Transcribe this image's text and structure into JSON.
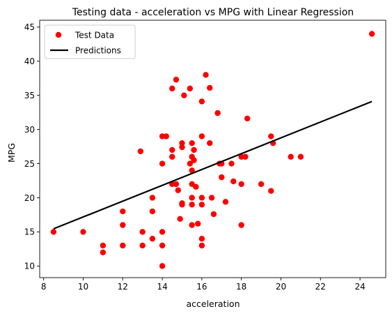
{
  "chart_data": {
    "type": "scatter",
    "title": "Testing data - acceleration vs MPG with Linear Regression",
    "xlabel": "acceleration",
    "ylabel": "MPG",
    "xlim": [
      7.8,
      25.3
    ],
    "ylim": [
      8.3,
      46.0
    ],
    "xticks": [
      8,
      10,
      12,
      14,
      16,
      18,
      20,
      22,
      24
    ],
    "yticks": [
      10,
      15,
      20,
      25,
      30,
      35,
      40,
      45
    ],
    "grid": false,
    "legend_position": "top-left",
    "series": [
      {
        "name": "Test Data",
        "kind": "scatter",
        "color": "#ff0000",
        "points": [
          [
            8.5,
            15
          ],
          [
            10,
            15
          ],
          [
            11,
            13
          ],
          [
            11,
            12
          ],
          [
            12,
            18
          ],
          [
            12,
            16
          ],
          [
            12,
            13
          ],
          [
            12.9,
            26.8
          ],
          [
            13,
            15
          ],
          [
            13,
            13
          ],
          [
            13.5,
            20
          ],
          [
            13.5,
            18
          ],
          [
            13.5,
            14
          ],
          [
            14,
            29
          ],
          [
            14.2,
            29
          ],
          [
            14,
            25
          ],
          [
            14,
            15
          ],
          [
            14,
            13
          ],
          [
            14,
            10
          ],
          [
            14.5,
            36
          ],
          [
            14.7,
            37.3
          ],
          [
            14.5,
            27
          ],
          [
            14.5,
            26
          ],
          [
            14.5,
            22
          ],
          [
            14.7,
            22
          ],
          [
            14.8,
            21.1
          ],
          [
            14.9,
            16.9
          ],
          [
            15,
            28
          ],
          [
            15,
            27.4
          ],
          [
            15.1,
            35
          ],
          [
            15,
            19.2
          ],
          [
            15,
            19
          ],
          [
            15.4,
            36
          ],
          [
            15.4,
            25
          ],
          [
            15.5,
            28
          ],
          [
            15.5,
            26
          ],
          [
            15.5,
            24
          ],
          [
            15.5,
            22
          ],
          [
            15.5,
            20
          ],
          [
            15.5,
            19
          ],
          [
            15.5,
            16
          ],
          [
            15.6,
            27
          ],
          [
            15.6,
            25.5
          ],
          [
            15.7,
            21.6
          ],
          [
            15.8,
            16.2
          ],
          [
            16,
            34.1
          ],
          [
            16,
            29
          ],
          [
            16,
            20
          ],
          [
            16,
            19
          ],
          [
            16,
            14
          ],
          [
            16,
            13
          ],
          [
            16.2,
            38
          ],
          [
            16.4,
            36.1
          ],
          [
            16.4,
            28
          ],
          [
            16.5,
            20
          ],
          [
            16.6,
            17.6
          ],
          [
            16.8,
            32.4
          ],
          [
            16.9,
            25
          ],
          [
            17,
            25
          ],
          [
            17,
            23
          ],
          [
            17.2,
            19.4
          ],
          [
            17.5,
            25
          ],
          [
            17.6,
            22.4
          ],
          [
            18,
            26
          ],
          [
            18.2,
            26
          ],
          [
            18,
            22
          ],
          [
            18,
            16
          ],
          [
            18.3,
            31.6
          ],
          [
            19,
            22
          ],
          [
            19.5,
            29
          ],
          [
            19.6,
            28
          ],
          [
            19.5,
            21
          ],
          [
            20.5,
            26
          ],
          [
            21,
            26
          ],
          [
            24.6,
            44
          ]
        ]
      },
      {
        "name": "Predictions",
        "kind": "line",
        "color": "#000000",
        "points": [
          [
            8.5,
            15.45
          ],
          [
            24.6,
            34.1
          ]
        ]
      }
    ]
  }
}
